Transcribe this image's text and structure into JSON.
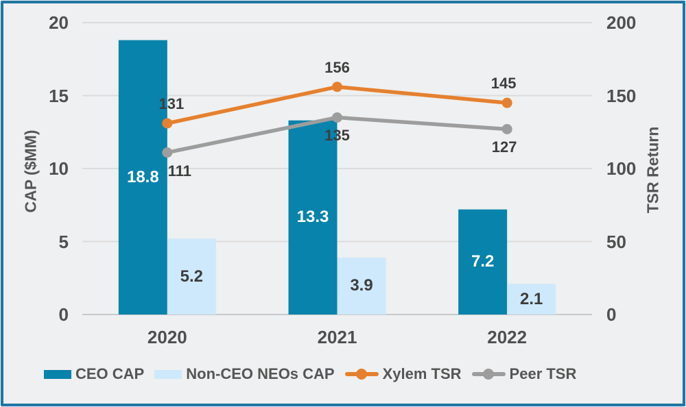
{
  "chart_data": {
    "type": "combo-bar-line",
    "categories": [
      "2020",
      "2021",
      "2022"
    ],
    "bar_series": [
      {
        "name": "CEO CAP",
        "axis": "left",
        "color": "#0883ab",
        "label_color": "#ffffff",
        "values": [
          18.8,
          13.3,
          7.2
        ]
      },
      {
        "name": "Non-CEO NEOs CAP",
        "axis": "left",
        "color": "#cee9fb",
        "label_color": "#3d3d3d",
        "values": [
          5.2,
          3.9,
          2.1
        ]
      }
    ],
    "line_series": [
      {
        "name": "Xylem TSR",
        "axis": "right",
        "color": "#e5802f",
        "label_position": "above",
        "values": [
          131,
          156,
          145
        ]
      },
      {
        "name": "Peer TSR",
        "axis": "right",
        "color": "#9d9d9d",
        "label_position": "below",
        "values": [
          111,
          135,
          127
        ]
      }
    ],
    "left_axis": {
      "title": "CAP ($MM)",
      "ticks": [
        0,
        5,
        10,
        15,
        20
      ],
      "range": [
        0,
        20
      ]
    },
    "right_axis": {
      "title": "TSR Return",
      "ticks": [
        0,
        50,
        100,
        150,
        200
      ],
      "range": [
        0,
        200
      ]
    },
    "grid": true,
    "legend_position": "bottom"
  },
  "colors": {
    "frame_border": "#2076a4",
    "background": "#eff0f1",
    "gridline": "#dcdcdd",
    "baseline": "#c7c8c9",
    "tick_text": "#4f4f4f",
    "data_label_text": "#3d3d3d"
  }
}
